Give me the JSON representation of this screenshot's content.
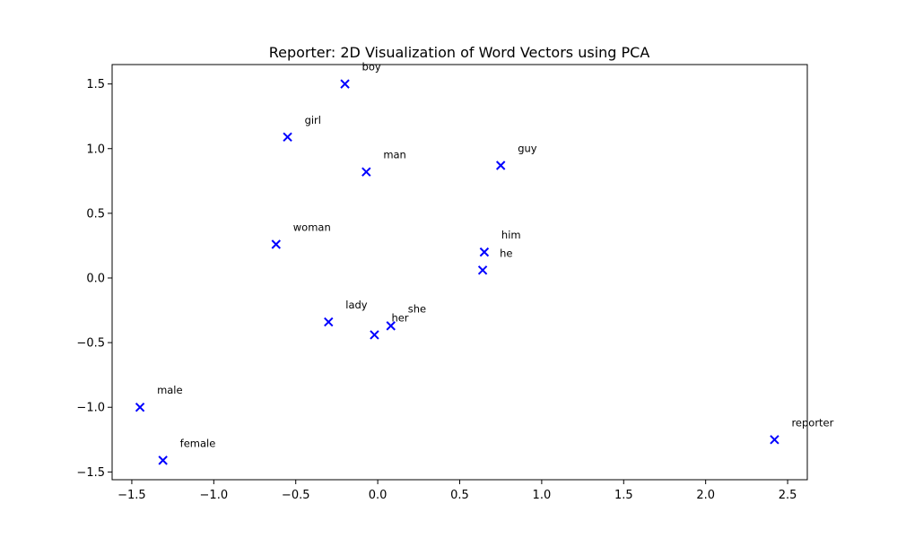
{
  "chart_data": {
    "type": "scatter",
    "title": "Reporter: 2D Visualization of Word Vectors using PCA",
    "xlabel": "",
    "ylabel": "",
    "xlim": [
      -1.62,
      2.62
    ],
    "ylim": [
      -1.56,
      1.65
    ],
    "xticks": [
      -1.5,
      -1.0,
      -0.5,
      0.0,
      0.5,
      1.0,
      1.5,
      2.0,
      2.5
    ],
    "xtick_labels": [
      "−1.5",
      "−1.0",
      "−0.5",
      "0.0",
      "0.5",
      "1.0",
      "1.5",
      "2.0",
      "2.5"
    ],
    "yticks": [
      -1.5,
      -1.0,
      -0.5,
      0.0,
      0.5,
      1.0,
      1.5
    ],
    "ytick_labels": [
      "−1.5",
      "−1.0",
      "−0.5",
      "0.0",
      "0.5",
      "1.0",
      "1.5"
    ],
    "grid": false,
    "marker": "x",
    "marker_color": "#0000ff",
    "points": [
      {
        "label": "boy",
        "x": -0.2,
        "y": 1.5
      },
      {
        "label": "girl",
        "x": -0.55,
        "y": 1.09
      },
      {
        "label": "man",
        "x": -0.07,
        "y": 0.82
      },
      {
        "label": "guy",
        "x": 0.75,
        "y": 0.87
      },
      {
        "label": "woman",
        "x": -0.62,
        "y": 0.26
      },
      {
        "label": "him",
        "x": 0.65,
        "y": 0.2
      },
      {
        "label": "he",
        "x": 0.64,
        "y": 0.06
      },
      {
        "label": "lady",
        "x": -0.3,
        "y": -0.34
      },
      {
        "label": "she",
        "x": 0.08,
        "y": -0.37
      },
      {
        "label": "her",
        "x": -0.02,
        "y": -0.44
      },
      {
        "label": "male",
        "x": -1.45,
        "y": -1.0
      },
      {
        "label": "female",
        "x": -1.31,
        "y": -1.41
      },
      {
        "label": "reporter",
        "x": 2.42,
        "y": -1.25
      }
    ]
  }
}
